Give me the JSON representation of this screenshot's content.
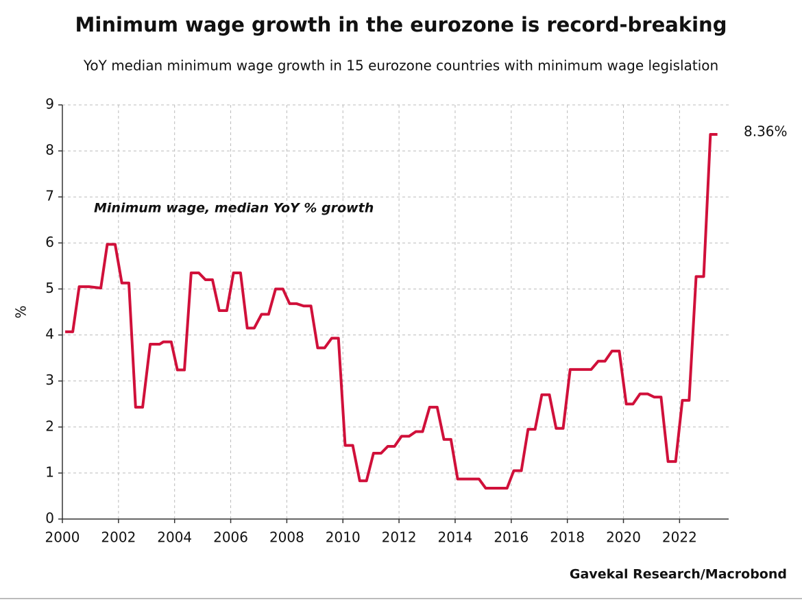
{
  "chart_data": {
    "type": "line",
    "title": "Minimum wage growth in the eurozone is record-breaking",
    "subtitle": "YoY median minimum wage growth in 15 eurozone countries with minimum wage legislation",
    "ylabel": "%",
    "source": "Gavekal Research/Macrobond",
    "annotations": [
      {
        "text": "8.36%"
      }
    ],
    "x": [
      2000.1,
      2000.37,
      2000.6,
      2000.95,
      2001.37,
      2001.6,
      2001.88,
      2002.12,
      2002.37,
      2002.61,
      2002.86,
      2003.13,
      2003.47,
      2003.6,
      2003.88,
      2004.1,
      2004.35,
      2004.59,
      2004.86,
      2005.1,
      2005.35,
      2005.59,
      2005.86,
      2006.1,
      2006.35,
      2006.59,
      2006.84,
      2007.1,
      2007.35,
      2007.6,
      2007.86,
      2008.1,
      2008.35,
      2008.6,
      2008.86,
      2009.1,
      2009.35,
      2009.6,
      2009.84,
      2010.08,
      2010.35,
      2010.6,
      2010.84,
      2011.09,
      2011.36,
      2011.6,
      2011.84,
      2012.09,
      2012.36,
      2012.6,
      2012.84,
      2013.09,
      2013.36,
      2013.6,
      2013.85,
      2014.09,
      2014.85,
      2015.09,
      2015.85,
      2016.09,
      2016.36,
      2016.6,
      2016.85,
      2017.09,
      2017.36,
      2017.6,
      2017.85,
      2018.1,
      2018.85,
      2019.1,
      2019.34,
      2019.59,
      2019.85,
      2020.1,
      2020.34,
      2020.59,
      2020.86,
      2021.1,
      2021.34,
      2021.59,
      2021.86,
      2022.1,
      2022.34,
      2022.59,
      2022.86,
      2023.1,
      2023.35
    ],
    "series": [
      {
        "name": "Minimum wage, median YoY % growth",
        "color": "#d0103a",
        "values": [
          4.07,
          4.07,
          5.05,
          5.05,
          5.02,
          5.97,
          5.97,
          5.13,
          5.13,
          2.43,
          2.43,
          3.8,
          3.8,
          3.85,
          3.85,
          3.24,
          3.24,
          5.35,
          5.35,
          5.2,
          5.2,
          4.53,
          4.53,
          5.35,
          5.35,
          4.15,
          4.15,
          4.45,
          4.45,
          5.0,
          5.0,
          4.68,
          4.68,
          4.63,
          4.63,
          3.72,
          3.72,
          3.93,
          3.93,
          1.6,
          1.6,
          0.83,
          0.83,
          1.43,
          1.43,
          1.58,
          1.58,
          1.8,
          1.8,
          1.9,
          1.9,
          2.43,
          2.43,
          1.73,
          1.73,
          0.87,
          0.87,
          0.67,
          0.67,
          1.05,
          1.05,
          1.95,
          1.95,
          2.7,
          2.7,
          1.97,
          1.97,
          3.25,
          3.25,
          3.43,
          3.43,
          3.65,
          3.65,
          2.5,
          2.5,
          2.72,
          2.72,
          2.65,
          2.65,
          1.25,
          1.25,
          2.58,
          2.58,
          5.27,
          5.27,
          8.36,
          8.36
        ]
      }
    ],
    "xlim": [
      2000,
      2023.75
    ],
    "xticks": [
      2000,
      2002,
      2004,
      2006,
      2008,
      2010,
      2012,
      2014,
      2016,
      2018,
      2020,
      2022
    ],
    "ylim": [
      0,
      9
    ],
    "yticks": [
      0,
      1,
      2,
      3,
      4,
      5,
      6,
      7,
      8,
      9
    ],
    "grid": true
  }
}
